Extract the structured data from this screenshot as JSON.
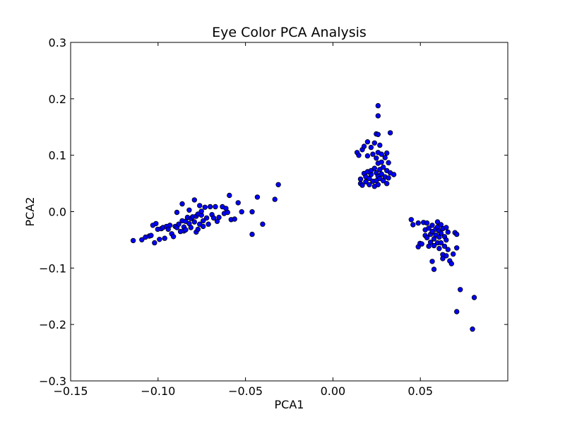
{
  "chart_data": {
    "type": "scatter",
    "title": "Eye Color PCA Analysis",
    "xlabel": "PCA1",
    "ylabel": "PCA2",
    "xlim": [
      -0.15,
      0.1
    ],
    "ylim": [
      -0.3,
      0.3
    ],
    "xticks": [
      -0.15,
      -0.1,
      -0.05,
      0.0,
      0.05
    ],
    "xtick_labels": [
      "−0.15",
      "−0.10",
      "−0.05",
      "0.00",
      "0.05"
    ],
    "yticks": [
      -0.3,
      -0.2,
      -0.1,
      0.0,
      0.1,
      0.2,
      0.3
    ],
    "ytick_labels": [
      "−0.3",
      "−0.2",
      "−0.1",
      "0.0",
      "0.1",
      "0.2",
      "0.3"
    ],
    "grid": false,
    "marker_color": "#0000ff",
    "marker_edge": "#000000",
    "points": [
      [
        -0.1142,
        -0.0512
      ],
      [
        -0.1093,
        -0.0498
      ],
      [
        -0.1072,
        -0.0452
      ],
      [
        -0.105,
        -0.0432
      ],
      [
        -0.104,
        -0.0422
      ],
      [
        -0.103,
        -0.0242
      ],
      [
        -0.102,
        -0.0552
      ],
      [
        -0.1012,
        -0.0212
      ],
      [
        -0.1002,
        -0.0312
      ],
      [
        -0.0992,
        -0.0492
      ],
      [
        -0.0982,
        -0.0302
      ],
      [
        -0.0972,
        -0.0282
      ],
      [
        -0.0962,
        -0.0472
      ],
      [
        -0.0952,
        -0.0262
      ],
      [
        -0.0942,
        -0.0312
      ],
      [
        -0.0932,
        -0.0242
      ],
      [
        -0.0922,
        -0.0392
      ],
      [
        -0.0912,
        -0.0442
      ],
      [
        -0.0902,
        -0.0262
      ],
      [
        -0.0892,
        -0.0282
      ],
      [
        -0.0892,
        -0.0012
      ],
      [
        -0.0882,
        -0.0222
      ],
      [
        -0.0872,
        -0.0352
      ],
      [
        -0.0862,
        -0.0162
      ],
      [
        -0.0862,
        0.0138
      ],
      [
        -0.0852,
        -0.0272
      ],
      [
        -0.0852,
        -0.0342
      ],
      [
        -0.0842,
        -0.0172
      ],
      [
        -0.0842,
        -0.0322
      ],
      [
        -0.0832,
        -0.0102
      ],
      [
        -0.0822,
        -0.0212
      ],
      [
        -0.0822,
        0.0028
      ],
      [
        -0.0812,
        -0.0122
      ],
      [
        -0.0812,
        -0.0282
      ],
      [
        -0.0802,
        -0.0092
      ],
      [
        -0.0792,
        0.0208
      ],
      [
        -0.0792,
        -0.0182
      ],
      [
        -0.0782,
        -0.0082
      ],
      [
        -0.0782,
        -0.0362
      ],
      [
        -0.0772,
        -0.0042
      ],
      [
        -0.0772,
        -0.0312
      ],
      [
        -0.0762,
        0.0108
      ],
      [
        -0.0762,
        -0.0222
      ],
      [
        -0.0752,
        -0.0062
      ],
      [
        -0.0752,
        0.0008
      ],
      [
        -0.0742,
        -0.0162
      ],
      [
        -0.0742,
        -0.0262
      ],
      [
        -0.0732,
        0.0078
      ],
      [
        -0.0722,
        -0.0112
      ],
      [
        -0.0712,
        -0.0222
      ],
      [
        -0.0702,
        0.0088
      ],
      [
        -0.0692,
        -0.0052
      ],
      [
        -0.0682,
        -0.0112
      ],
      [
        -0.0672,
        0.0088
      ],
      [
        -0.0662,
        -0.0172
      ],
      [
        -0.0652,
        -0.0102
      ],
      [
        -0.0632,
        0.0088
      ],
      [
        -0.0622,
        -0.0032
      ],
      [
        -0.0612,
        0.0058
      ],
      [
        -0.0602,
        -0.0012
      ],
      [
        -0.0592,
        0.0288
      ],
      [
        -0.0582,
        -0.0142
      ],
      [
        -0.0562,
        -0.0132
      ],
      [
        -0.0542,
        0.0158
      ],
      [
        -0.0522,
        -0.0002
      ],
      [
        -0.0462,
        -0.0002
      ],
      [
        -0.0462,
        -0.0402
      ],
      [
        -0.0432,
        0.0258
      ],
      [
        -0.0402,
        -0.0222
      ],
      [
        -0.0332,
        0.0218
      ],
      [
        -0.0312,
        0.0478
      ],
      [
        0.0138,
        0.1048
      ],
      [
        0.0148,
        0.0998
      ],
      [
        0.0158,
        0.0578
      ],
      [
        0.0158,
        0.0498
      ],
      [
        0.0168,
        0.1098
      ],
      [
        0.0168,
        0.0468
      ],
      [
        0.0178,
        0.1158
      ],
      [
        0.0178,
        0.0678
      ],
      [
        0.0188,
        0.0618
      ],
      [
        0.0188,
        0.0528
      ],
      [
        0.0198,
        0.1238
      ],
      [
        0.0198,
        0.0988
      ],
      [
        0.0198,
        0.0708
      ],
      [
        0.0208,
        0.0588
      ],
      [
        0.0208,
        0.0478
      ],
      [
        0.0218,
        0.1138
      ],
      [
        0.0218,
        0.0658
      ],
      [
        0.0218,
        0.0728
      ],
      [
        0.0228,
        0.1018
      ],
      [
        0.0228,
        0.0538
      ],
      [
        0.0238,
        0.1218
      ],
      [
        0.0238,
        0.0768
      ],
      [
        0.0238,
        0.0448
      ],
      [
        0.0248,
        0.1378
      ],
      [
        0.0248,
        0.0948
      ],
      [
        0.0248,
        0.0688
      ],
      [
        0.0248,
        0.0548
      ],
      [
        0.0258,
        0.1878
      ],
      [
        0.0258,
        0.1698
      ],
      [
        0.0258,
        0.1368
      ],
      [
        0.0258,
        0.1048
      ],
      [
        0.0258,
        0.0858
      ],
      [
        0.0258,
        0.0628
      ],
      [
        0.0258,
        0.0478
      ],
      [
        0.0268,
        0.1178
      ],
      [
        0.0268,
        0.0748
      ],
      [
        0.0268,
        0.0588
      ],
      [
        0.0278,
        0.1018
      ],
      [
        0.0278,
        0.0878
      ],
      [
        0.0278,
        0.0668
      ],
      [
        0.0288,
        0.0548
      ],
      [
        0.0288,
        0.0788
      ],
      [
        0.0298,
        0.0958
      ],
      [
        0.0298,
        0.0618
      ],
      [
        0.0308,
        0.1038
      ],
      [
        0.0308,
        0.0728
      ],
      [
        0.0308,
        0.0498
      ],
      [
        0.0318,
        0.0868
      ],
      [
        0.0318,
        0.0598
      ],
      [
        0.0328,
        0.1398
      ],
      [
        0.0328,
        0.0688
      ],
      [
        0.0348,
        0.0658
      ],
      [
        0.0448,
        -0.0142
      ],
      [
        0.0458,
        -0.0232
      ],
      [
        0.0488,
        -0.0202
      ],
      [
        0.0488,
        -0.0622
      ],
      [
        0.0498,
        -0.0562
      ],
      [
        0.0508,
        -0.0572
      ],
      [
        0.0518,
        -0.0192
      ],
      [
        0.0528,
        -0.0322
      ],
      [
        0.0528,
        -0.0422
      ],
      [
        0.0538,
        -0.0462
      ],
      [
        0.0538,
        -0.0202
      ],
      [
        0.0548,
        -0.0612
      ],
      [
        0.0548,
        -0.0292
      ],
      [
        0.0558,
        -0.0402
      ],
      [
        0.0558,
        -0.0542
      ],
      [
        0.0568,
        -0.0242
      ],
      [
        0.0568,
        -0.0352
      ],
      [
        0.0568,
        -0.0882
      ],
      [
        0.0578,
        -0.0482
      ],
      [
        0.0578,
        -0.1022
      ],
      [
        0.0578,
        -0.0602
      ],
      [
        0.0588,
        -0.0312
      ],
      [
        0.0588,
        -0.0412
      ],
      [
        0.0598,
        -0.0272
      ],
      [
        0.0598,
        -0.0552
      ],
      [
        0.0598,
        -0.0182
      ],
      [
        0.0608,
        -0.0342
      ],
      [
        0.0608,
        -0.0452
      ],
      [
        0.0608,
        -0.0652
      ],
      [
        0.0618,
        -0.0232
      ],
      [
        0.0618,
        -0.0382
      ],
      [
        0.0618,
        -0.0552
      ],
      [
        0.0628,
        -0.0302
      ],
      [
        0.0628,
        -0.0762
      ],
      [
        0.0628,
        -0.0832
      ],
      [
        0.0638,
        -0.0442
      ],
      [
        0.0638,
        -0.0612
      ],
      [
        0.0648,
        -0.0282
      ],
      [
        0.0648,
        -0.0502
      ],
      [
        0.0648,
        -0.0782
      ],
      [
        0.0658,
        -0.0362
      ],
      [
        0.0658,
        -0.0672
      ],
      [
        0.0668,
        -0.0872
      ],
      [
        0.0678,
        -0.0922
      ],
      [
        0.0688,
        -0.0752
      ],
      [
        0.0698,
        -0.0372
      ],
      [
        0.0708,
        -0.0402
      ],
      [
        0.0708,
        -0.0642
      ],
      [
        0.0708,
        -0.1772
      ],
      [
        0.0728,
        -0.1382
      ],
      [
        0.0798,
        -0.2082
      ],
      [
        0.0808,
        -0.1522
      ]
    ]
  }
}
